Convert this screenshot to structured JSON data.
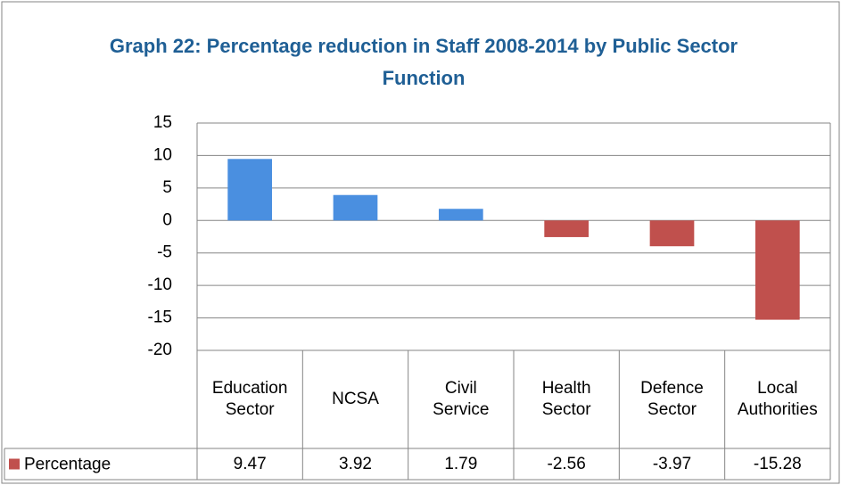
{
  "chart_data": {
    "type": "bar",
    "title": "Graph 22: Percentage reduction in Staff 2008-2014 by Public Sector Function",
    "categories": [
      "Education Sector",
      "NCSA",
      "Civil Service",
      "Health Sector",
      "Defence Sector",
      "Local Authorities"
    ],
    "series": [
      {
        "name": "Percentage",
        "color": "#c0504d",
        "positive_color": "#4a8fe0",
        "values": [
          9.47,
          3.92,
          1.79,
          -2.56,
          -3.97,
          -15.28
        ]
      }
    ],
    "ylim": [
      -20,
      15
    ],
    "yticks": [
      -20,
      -15,
      -10,
      -5,
      0,
      5,
      10,
      15
    ],
    "grid": true,
    "data_table": true
  }
}
